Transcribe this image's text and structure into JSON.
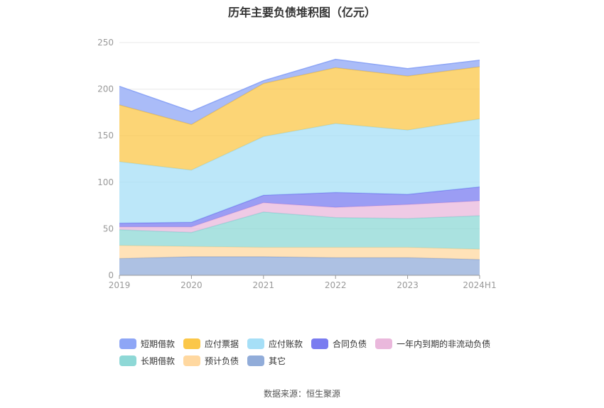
{
  "title": "历年主要负债堆积图（亿元）",
  "source": "数据来源：恒生聚源",
  "chart_data": {
    "type": "area",
    "stacked": true,
    "categories": [
      "2019",
      "2020",
      "2021",
      "2022",
      "2023",
      "2024H1"
    ],
    "ylim": [
      0,
      250
    ],
    "yticks": [
      0,
      50,
      100,
      150,
      200,
      250
    ],
    "grid": true,
    "legend_position": "bottom",
    "series": [
      {
        "name": "其它",
        "color": "#91acd9",
        "values": [
          18,
          20,
          20,
          19,
          19,
          17
        ]
      },
      {
        "name": "预计负债",
        "color": "#ffd8a0",
        "values": [
          14,
          11,
          10,
          11,
          11,
          11
        ]
      },
      {
        "name": "长期借款",
        "color": "#8ed8d6",
        "values": [
          17,
          15,
          38,
          32,
          31,
          36
        ]
      },
      {
        "name": "一年内到期的非流动负债",
        "color": "#eab8dc",
        "values": [
          3,
          6,
          10,
          11,
          15,
          16
        ]
      },
      {
        "name": "合同负债",
        "color": "#7a7cf0",
        "values": [
          4,
          5,
          8,
          16,
          11,
          15
        ]
      },
      {
        "name": "应付账款",
        "color": "#a6dff7",
        "values": [
          66,
          56,
          63,
          74,
          69,
          73
        ]
      },
      {
        "name": "应付票据",
        "color": "#fbc748",
        "values": [
          61,
          49,
          57,
          60,
          58,
          56
        ]
      },
      {
        "name": "短期借款",
        "color": "#8ea6f6",
        "values": [
          20,
          14,
          3,
          9,
          8,
          7
        ]
      }
    ],
    "legend_order": [
      "短期借款",
      "应付票据",
      "应付账款",
      "合同负债",
      "一年内到期的非流动负债",
      "长期借款",
      "预计负债",
      "其它"
    ]
  }
}
